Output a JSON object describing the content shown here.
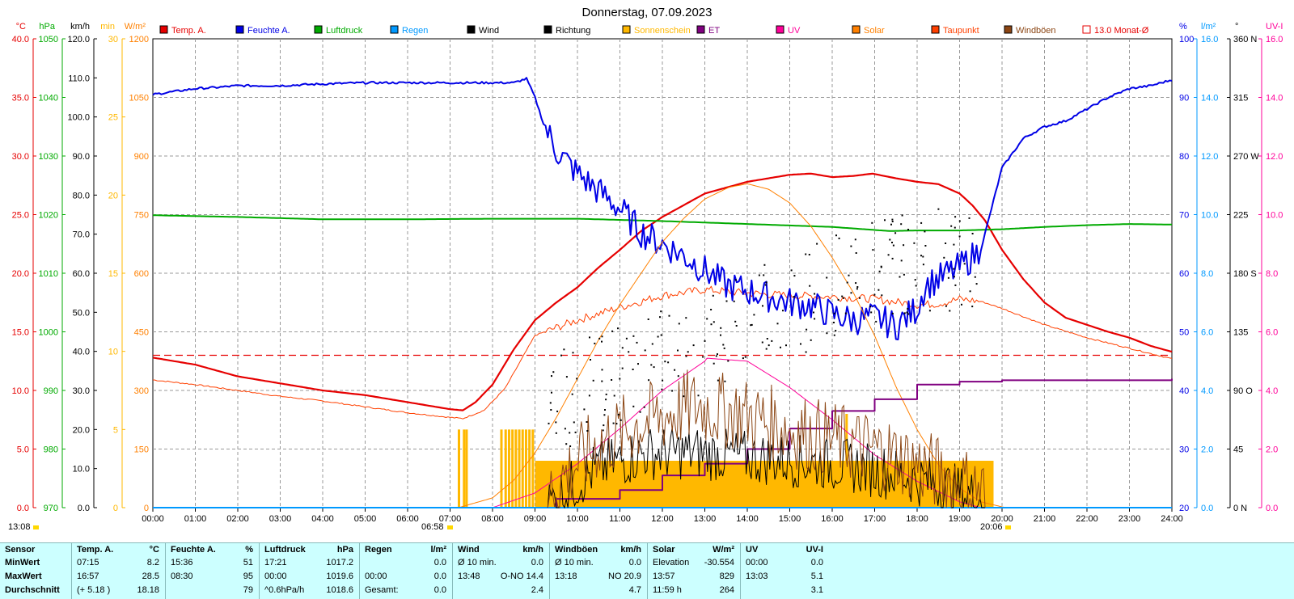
{
  "title": "Donnerstag, 07.09.2023",
  "time_start": "13:08",
  "sunrise": "06:58",
  "sunset": "20:06",
  "legend": [
    {
      "label": "Temp. A.",
      "color": "#e60000",
      "filled": true
    },
    {
      "label": "Feuchte A.",
      "color": "#0000e6",
      "filled": true
    },
    {
      "label": "Luftdruck",
      "color": "#00aa00",
      "filled": true
    },
    {
      "label": "Regen",
      "color": "#0099ff",
      "filled": true
    },
    {
      "label": "Wind",
      "color": "#000000",
      "filled": true
    },
    {
      "label": "Richtung",
      "color": "#000000",
      "filled": true
    },
    {
      "label": "Sonnenschein",
      "color": "#ffb800",
      "filled": true
    },
    {
      "label": "ET",
      "color": "#800080",
      "filled": true
    },
    {
      "label": "UV",
      "color": "#ff0099",
      "filled": true
    },
    {
      "label": "Solar",
      "color": "#ff8000",
      "filled": true
    },
    {
      "label": "Taupunkt",
      "color": "#ff4000",
      "filled": true
    },
    {
      "label": "Windböen",
      "color": "#8b4513",
      "filled": true
    },
    {
      "label": "13.0 Monat-Ø",
      "color": "#e60000",
      "filled": false
    }
  ],
  "axes": {
    "temp": {
      "unit": "°C",
      "color": "#e60000",
      "ticks": [
        "0.0",
        "5.0",
        "10.0",
        "15.0",
        "20.0",
        "25.0",
        "30.0",
        "35.0",
        "40.0"
      ]
    },
    "pressure": {
      "unit": "hPa",
      "color": "#00aa00",
      "ticks": [
        "970",
        "980",
        "990",
        "1000",
        "1010",
        "1020",
        "1030",
        "1040",
        "1050"
      ]
    },
    "wind": {
      "unit": "km/h",
      "color": "#000000",
      "ticks": [
        "0.0",
        "10.0",
        "20.0",
        "30.0",
        "40.0",
        "50.0",
        "60.0",
        "70.0",
        "80.0",
        "90.0",
        "100.0",
        "110.0",
        "120.0"
      ]
    },
    "sunmin": {
      "unit": "min",
      "color": "#ffb800",
      "ticks": [
        "0",
        "5",
        "10",
        "15",
        "20",
        "25",
        "30"
      ]
    },
    "solar": {
      "unit": "W/m²",
      "color": "#ff8000",
      "ticks": [
        "0",
        "150",
        "300",
        "450",
        "600",
        "750",
        "900",
        "1050",
        "1200"
      ]
    },
    "humidity": {
      "unit": "%",
      "color": "#0000e6",
      "ticks": [
        "20",
        "30",
        "40",
        "50",
        "60",
        "70",
        "80",
        "90",
        "100"
      ]
    },
    "rain": {
      "unit": "l/m²",
      "color": "#0099ff",
      "ticks": [
        "0.0",
        "2.0",
        "4.0",
        "6.0",
        "8.0",
        "10.0",
        "12.0",
        "14.0",
        "16.0"
      ]
    },
    "direction": {
      "unit": "°",
      "color": "#000000",
      "ticks": [
        "0 N",
        "45",
        "90 O",
        "135",
        "180 S",
        "225",
        "270 W",
        "315",
        "360 N"
      ]
    },
    "uv": {
      "unit": "UV-I",
      "color": "#ff0099",
      "ticks": [
        "0.0",
        "2.0",
        "4.0",
        "6.0",
        "8.0",
        "10.0",
        "12.0",
        "14.0",
        "16.0"
      ]
    }
  },
  "chart_data": {
    "type": "line",
    "x_unit": "hours",
    "x_ticks": [
      "00:00",
      "01:00",
      "02:00",
      "03:00",
      "04:00",
      "05:00",
      "06:00",
      "07:00",
      "08:00",
      "09:00",
      "10:00",
      "11:00",
      "12:00",
      "13:00",
      "14:00",
      "15:00",
      "16:00",
      "17:00",
      "18:00",
      "19:00",
      "20:00",
      "21:00",
      "22:00",
      "23:00",
      "24:00"
    ],
    "x_range": [
      0,
      24
    ],
    "grid": true,
    "monthly_avg_temp": 13.0,
    "series": [
      {
        "name": "Temp. A.",
        "axis": "temp",
        "color": "#e60000",
        "width": 2.2,
        "x": [
          0,
          0.5,
          1,
          1.5,
          2,
          3,
          4,
          5,
          6,
          6.5,
          7,
          7.3,
          7.6,
          8,
          8.5,
          9,
          9.5,
          10,
          10.5,
          11,
          11.5,
          12,
          12.5,
          13,
          13.5,
          14,
          14.5,
          15,
          15.5,
          16,
          16.5,
          16.95,
          17.5,
          18,
          18.5,
          19,
          19.3,
          19.6,
          20,
          20.5,
          21,
          21.5,
          22,
          22.5,
          23,
          23.5,
          24
        ],
        "y": [
          12.8,
          12.5,
          12.2,
          11.7,
          11.2,
          10.6,
          10.0,
          9.6,
          9.0,
          8.7,
          8.4,
          8.3,
          9.0,
          10.5,
          13.5,
          16.0,
          17.5,
          18.8,
          20.5,
          22.0,
          23.6,
          24.8,
          25.8,
          26.8,
          27.3,
          27.8,
          28.1,
          28.4,
          28.5,
          28.2,
          28.3,
          28.5,
          28.1,
          27.8,
          27.6,
          26.8,
          25.8,
          24.5,
          22.0,
          19.5,
          17.5,
          16.2,
          15.6,
          15.0,
          14.5,
          13.8,
          13.3
        ]
      },
      {
        "name": "Taupunkt",
        "axis": "temp",
        "color": "#ff4000",
        "width": 1,
        "x": [
          0,
          1,
          2,
          3,
          4,
          5,
          6,
          7,
          7.3,
          7.8,
          8.3,
          9,
          10,
          11,
          12,
          13,
          14,
          15,
          16,
          17,
          18,
          18.5,
          19,
          19.5,
          20,
          21,
          22,
          23,
          24
        ],
        "y": [
          10.9,
          10.5,
          10.0,
          9.5,
          9.1,
          8.6,
          8.1,
          7.7,
          7.6,
          8.3,
          10.2,
          14.7,
          16.0,
          17.1,
          18.1,
          18.6,
          18.3,
          18.1,
          18.0,
          17.8,
          17.3,
          17.4,
          17.8,
          17.6,
          17.0,
          15.6,
          14.5,
          13.6,
          12.7
        ]
      },
      {
        "name": "Luftdruck",
        "axis": "pressure",
        "color": "#00aa00",
        "width": 2,
        "x": [
          0,
          2,
          4,
          6,
          8,
          10,
          12,
          14,
          16,
          17.35,
          18,
          19,
          20,
          21,
          22,
          23,
          24
        ],
        "y": [
          1019.9,
          1019.6,
          1019.2,
          1019.2,
          1019.3,
          1019.3,
          1018.9,
          1018.4,
          1017.9,
          1017.2,
          1017.3,
          1017.3,
          1017.5,
          1017.9,
          1018.2,
          1018.4,
          1018.3
        ]
      },
      {
        "name": "Feuchte A.",
        "axis": "humidity",
        "color": "#0000e6",
        "width": 2,
        "x": [
          0,
          0.5,
          1,
          1.5,
          2,
          3,
          4,
          5,
          6,
          7,
          7.5,
          8,
          8.5,
          8.8,
          9,
          9.2,
          9.5,
          10,
          10.5,
          11,
          11.5,
          12,
          12.5,
          13,
          13.5,
          14,
          14.5,
          15,
          15.5,
          16,
          16.5,
          17,
          17.5,
          18,
          18.2,
          18.5,
          19,
          19.5,
          20,
          20.5,
          21,
          21.5,
          22,
          22.5,
          23,
          23.5,
          24
        ],
        "y": [
          90.5,
          91,
          91.5,
          91.7,
          92,
          92,
          92.3,
          92.5,
          92.5,
          92.5,
          92.5,
          92.5,
          92.5,
          93.2,
          90,
          85.5,
          81,
          77,
          74,
          71,
          67,
          65,
          63,
          60.5,
          58,
          57,
          56,
          55,
          54.5,
          53,
          52,
          52.5,
          51,
          54,
          58,
          59,
          61,
          64,
          78,
          83,
          85,
          86,
          88,
          90,
          91.5,
          92,
          93
        ]
      },
      {
        "name": "Solar",
        "axis": "solar",
        "color": "#ff8000",
        "width": 1,
        "x": [
          7.2,
          8,
          8.5,
          9,
          9.5,
          10,
          10.5,
          11,
          11.5,
          12,
          12.5,
          13,
          13.57,
          14,
          14.5,
          15,
          15.5,
          16,
          16.5,
          17,
          17.5,
          18,
          18.5,
          19,
          19.5,
          20,
          20.1
        ],
        "y": [
          0,
          25,
          70,
          140,
          230,
          330,
          430,
          520,
          600,
          680,
          740,
          790,
          820,
          829,
          815,
          780,
          720,
          640,
          550,
          440,
          310,
          200,
          110,
          50,
          15,
          2,
          0
        ]
      },
      {
        "name": "UV",
        "axis": "uv",
        "color": "#ff0099",
        "width": 1,
        "x": [
          8,
          9,
          10,
          11,
          12,
          13,
          13.05,
          14,
          15,
          16,
          17,
          18,
          19,
          19.5
        ],
        "y": [
          0,
          0.5,
          1.5,
          2.7,
          4.0,
          5.0,
          5.1,
          5.0,
          4.1,
          3.0,
          1.8,
          0.9,
          0.2,
          0
        ]
      },
      {
        "name": "ET",
        "axis": "rain",
        "color": "#800080",
        "width": 2,
        "step": true,
        "x": [
          8,
          9.5,
          11,
          12,
          13,
          14,
          15,
          16,
          17,
          18,
          19,
          20,
          24
        ],
        "y": [
          0,
          0.3,
          0.6,
          1.1,
          1.5,
          2.0,
          2.7,
          3.3,
          3.7,
          4.2,
          4.3,
          4.35,
          4.4
        ]
      },
      {
        "name": "Regen",
        "axis": "rain",
        "color": "#0099ff",
        "width": 2,
        "x": [
          0,
          24
        ],
        "y": [
          0,
          0
        ]
      }
    ],
    "noisy_series": [
      {
        "name": "Wind",
        "axis": "wind",
        "color": "#000000",
        "width": 1,
        "x_start": 9.3,
        "x_end": 19.6,
        "base": [
          1,
          10,
          14,
          14,
          13,
          12,
          11,
          9,
          6,
          2
        ],
        "amp": 7
      },
      {
        "name": "Windböen",
        "axis": "wind",
        "color": "#8b4513",
        "width": 1,
        "x_start": 9.3,
        "x_end": 19.6,
        "base": [
          4,
          16,
          22,
          26,
          24,
          20,
          17,
          14,
          9,
          4
        ],
        "amp": 10
      }
    ],
    "direction_points": {
      "axis": "direction",
      "x_start": 9.3,
      "x_end": 19.4,
      "base": [
        80,
        95,
        110,
        120,
        130,
        150,
        160,
        175,
        185,
        190,
        195
      ],
      "spread": 40
    },
    "sunshine_bars": {
      "axis": "sunmin",
      "color": "#ffb800",
      "spikes": [
        [
          7.2,
          5
        ],
        [
          7.32,
          5
        ],
        [
          7.38,
          5
        ],
        [
          8.2,
          5
        ],
        [
          8.3,
          5
        ],
        [
          8.38,
          5
        ],
        [
          8.46,
          5
        ],
        [
          8.54,
          5
        ],
        [
          8.62,
          5
        ],
        [
          8.7,
          5
        ],
        [
          8.78,
          5
        ],
        [
          8.86,
          5
        ],
        [
          8.94,
          5
        ],
        [
          16.33,
          6
        ]
      ],
      "block": {
        "x0": 9.0,
        "x1": 19.8,
        "value": 3
      }
    }
  },
  "stats": {
    "groups": [
      {
        "name": "Sensor",
        "unit": "",
        "rows": [
          [
            "",
            ""
          ],
          [
            "",
            ""
          ],
          [
            "",
            ""
          ]
        ],
        "labels": [
          "MinWert",
          "MaxWert",
          "Durchschnitt"
        ]
      },
      {
        "name": "Temp. A.",
        "unit": "°C",
        "rows": [
          [
            "07:15",
            "8.2"
          ],
          [
            "16:57",
            "28.5"
          ],
          [
            "(+ 5.18 )",
            "18.18"
          ]
        ]
      },
      {
        "name": "Feuchte A.",
        "unit": "%",
        "rows": [
          [
            "15:36",
            "51"
          ],
          [
            "08:30",
            "95"
          ],
          [
            "",
            "79"
          ]
        ]
      },
      {
        "name": "Luftdruck",
        "unit": "hPa",
        "rows": [
          [
            "17:21",
            "1017.2"
          ],
          [
            "00:00",
            "1019.6"
          ],
          [
            "^0.6hPa/h",
            "1018.6"
          ]
        ]
      },
      {
        "name": "Regen",
        "unit": "l/m²",
        "rows": [
          [
            "",
            ""
          ],
          [
            "00:00",
            "0.0"
          ],
          [
            "Gesamt:",
            "0.0"
          ]
        ]
      },
      {
        "name": "Wind",
        "unit": "km/h",
        "rows": [
          [
            "Ø 10 min.",
            "0.0"
          ],
          [
            "13:48",
            "O-NO 14.4"
          ],
          [
            "",
            "2.4"
          ]
        ]
      },
      {
        "name": "Windböen",
        "unit": "km/h",
        "rows": [
          [
            "Ø 10 min.",
            "0.0"
          ],
          [
            "13:18",
            "NO 20.9"
          ],
          [
            "",
            "4.7"
          ]
        ]
      },
      {
        "name": "Solar",
        "unit": "W/m²",
        "rows": [
          [
            "Elevation",
            "-30.554"
          ],
          [
            "13:57",
            "829"
          ],
          [
            "11:59 h",
            "264"
          ]
        ]
      },
      {
        "name": "UV",
        "unit": "UV-I",
        "rows": [
          [
            "00:00",
            "0.0"
          ],
          [
            "13:03",
            "5.1"
          ],
          [
            "",
            "3.1"
          ]
        ]
      }
    ],
    "regen_first_row_value": "0.0"
  }
}
